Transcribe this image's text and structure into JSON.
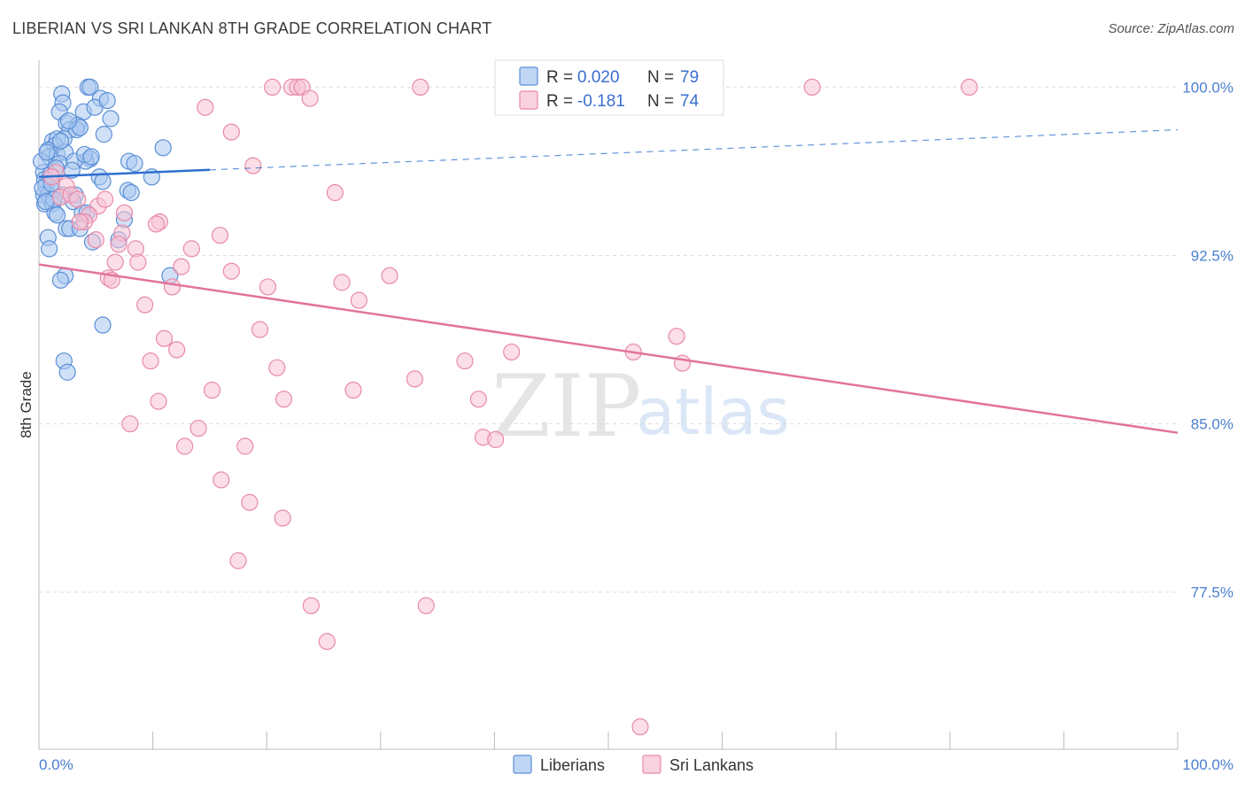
{
  "header": {
    "title": "LIBERIAN VS SRI LANKAN 8TH GRADE CORRELATION CHART",
    "source": "Source: ZipAtlas.com"
  },
  "watermark": {
    "zip": "ZIP",
    "atlas": "atlas"
  },
  "legend": {
    "rows": [
      {
        "r_label": "R =",
        "r_value": "0.020",
        "n_label": "N =",
        "n_value": "79",
        "color": "#7aaae8"
      },
      {
        "r_label": "R =",
        "r_value": "-0.181",
        "n_label": "N =",
        "n_value": "74",
        "color": "#f4a6c0"
      }
    ]
  },
  "colors": {
    "liberians_fill": "#a9c8f0",
    "liberians_stroke": "#5b8fd6",
    "liberians_line": "#2f6fcf",
    "srilankans_fill": "#f7c3d4",
    "srilankans_stroke": "#e889a9",
    "srilankans_line": "#e2739c",
    "grid": "#dddddd",
    "tick_text": "#4a7fd0"
  },
  "chart_data": {
    "type": "scatter",
    "title": "LIBERIAN VS SRI LANKAN 8TH GRADE CORRELATION CHART",
    "xlabel": "",
    "ylabel": "8th Grade",
    "xlim": [
      0,
      100
    ],
    "ylim": [
      70.5,
      101.2
    ],
    "x_tick_labels": [
      "0.0%",
      "100.0%"
    ],
    "y_ticks": [
      {
        "value": 100.0,
        "label": "100.0%"
      },
      {
        "value": 92.5,
        "label": "92.5%"
      },
      {
        "value": 85.0,
        "label": "85.0%"
      },
      {
        "value": 77.5,
        "label": "77.5%"
      }
    ],
    "series": [
      {
        "name": "Liberians",
        "r": 0.02,
        "n": 79,
        "trend": {
          "x0": 0,
          "y0": 96.0,
          "x1": 100,
          "y1": 98.1,
          "solid_until": 15
        },
        "points": [
          [
            2.0,
            99.7
          ],
          [
            4.3,
            100.0
          ],
          [
            4.5,
            100.0
          ],
          [
            5.4,
            99.5
          ],
          [
            2.1,
            99.3
          ],
          [
            1.8,
            98.9
          ],
          [
            3.9,
            98.9
          ],
          [
            4.9,
            99.1
          ],
          [
            6.3,
            98.6
          ],
          [
            2.4,
            98.4
          ],
          [
            3.4,
            98.3
          ],
          [
            2.7,
            98.1
          ],
          [
            3.3,
            98.1
          ],
          [
            3.6,
            98.2
          ],
          [
            5.7,
            97.9
          ],
          [
            1.2,
            97.6
          ],
          [
            1.6,
            97.7
          ],
          [
            2.2,
            97.7
          ],
          [
            1.4,
            97.4
          ],
          [
            0.8,
            97.2
          ],
          [
            0.9,
            96.9
          ],
          [
            1.6,
            97.0
          ],
          [
            2.3,
            97.1
          ],
          [
            10.9,
            97.3
          ],
          [
            4.5,
            96.8
          ],
          [
            4.1,
            96.7
          ],
          [
            7.9,
            96.7
          ],
          [
            8.4,
            96.6
          ],
          [
            1.8,
            96.6
          ],
          [
            3.1,
            96.7
          ],
          [
            0.4,
            96.2
          ],
          [
            0.5,
            95.9
          ],
          [
            5.3,
            96.0
          ],
          [
            9.9,
            96.0
          ],
          [
            0.6,
            95.6
          ],
          [
            1.2,
            95.4
          ],
          [
            5.6,
            95.8
          ],
          [
            7.8,
            95.4
          ],
          [
            2.1,
            95.2
          ],
          [
            0.4,
            95.2
          ],
          [
            0.8,
            95.2
          ],
          [
            1.0,
            95.0
          ],
          [
            8.1,
            95.3
          ],
          [
            0.5,
            94.8
          ],
          [
            1.2,
            94.8
          ],
          [
            1.4,
            94.4
          ],
          [
            1.6,
            94.3
          ],
          [
            3.8,
            94.4
          ],
          [
            4.2,
            94.4
          ],
          [
            7.5,
            94.1
          ],
          [
            2.4,
            93.7
          ],
          [
            2.7,
            93.7
          ],
          [
            3.6,
            93.7
          ],
          [
            0.8,
            93.3
          ],
          [
            4.7,
            93.1
          ],
          [
            7.0,
            93.2
          ],
          [
            0.9,
            92.8
          ],
          [
            2.3,
            91.6
          ],
          [
            11.5,
            91.6
          ],
          [
            1.9,
            91.4
          ],
          [
            5.6,
            89.4
          ],
          [
            2.2,
            87.8
          ],
          [
            2.5,
            87.3
          ],
          [
            1.0,
            96.1
          ],
          [
            0.3,
            95.5
          ],
          [
            1.3,
            95.0
          ],
          [
            2.9,
            96.3
          ],
          [
            3.2,
            95.2
          ],
          [
            1.5,
            96.4
          ],
          [
            0.6,
            94.9
          ],
          [
            4.0,
            97.0
          ],
          [
            6.0,
            99.4
          ],
          [
            1.1,
            95.7
          ],
          [
            2.6,
            98.5
          ],
          [
            0.2,
            96.7
          ],
          [
            0.7,
            97.1
          ],
          [
            3.0,
            94.9
          ],
          [
            1.9,
            97.6
          ],
          [
            4.6,
            96.9
          ]
        ]
      },
      {
        "name": "Sri Lankans",
        "r": -0.181,
        "n": 74,
        "trend": {
          "x0": 0,
          "y0": 92.1,
          "x1": 100,
          "y1": 84.6
        },
        "points": [
          [
            20.5,
            100.0
          ],
          [
            22.2,
            100.0
          ],
          [
            22.7,
            100.0
          ],
          [
            23.1,
            100.0
          ],
          [
            33.5,
            100.0
          ],
          [
            67.9,
            100.0
          ],
          [
            81.7,
            100.0
          ],
          [
            23.8,
            99.5
          ],
          [
            14.6,
            99.1
          ],
          [
            16.9,
            98.0
          ],
          [
            18.8,
            96.5
          ],
          [
            1.5,
            96.2
          ],
          [
            1.1,
            96.0
          ],
          [
            2.4,
            95.6
          ],
          [
            1.9,
            95.1
          ],
          [
            2.8,
            95.2
          ],
          [
            3.4,
            95.0
          ],
          [
            26.0,
            95.3
          ],
          [
            5.2,
            94.7
          ],
          [
            4.4,
            94.3
          ],
          [
            4.0,
            94.0
          ],
          [
            7.5,
            94.4
          ],
          [
            10.6,
            94.0
          ],
          [
            10.3,
            93.9
          ],
          [
            7.3,
            93.5
          ],
          [
            15.9,
            93.4
          ],
          [
            5.0,
            93.2
          ],
          [
            7.0,
            93.0
          ],
          [
            8.5,
            92.8
          ],
          [
            13.4,
            92.8
          ],
          [
            8.7,
            92.2
          ],
          [
            6.7,
            92.2
          ],
          [
            12.5,
            92.0
          ],
          [
            16.9,
            91.8
          ],
          [
            6.1,
            91.5
          ],
          [
            6.4,
            91.4
          ],
          [
            30.8,
            91.6
          ],
          [
            26.6,
            91.3
          ],
          [
            11.7,
            91.1
          ],
          [
            20.1,
            91.1
          ],
          [
            9.3,
            90.3
          ],
          [
            28.1,
            90.5
          ],
          [
            19.4,
            89.2
          ],
          [
            56.0,
            88.9
          ],
          [
            11.0,
            88.8
          ],
          [
            12.1,
            88.3
          ],
          [
            41.5,
            88.2
          ],
          [
            9.8,
            87.8
          ],
          [
            37.4,
            87.8
          ],
          [
            52.2,
            88.2
          ],
          [
            20.9,
            87.5
          ],
          [
            56.5,
            87.7
          ],
          [
            33.0,
            87.0
          ],
          [
            15.2,
            86.5
          ],
          [
            27.6,
            86.5
          ],
          [
            10.5,
            86.0
          ],
          [
            21.5,
            86.1
          ],
          [
            38.6,
            86.1
          ],
          [
            8.0,
            85.0
          ],
          [
            14.0,
            84.8
          ],
          [
            39.0,
            84.4
          ],
          [
            40.1,
            84.3
          ],
          [
            12.8,
            84.0
          ],
          [
            18.1,
            84.0
          ],
          [
            16.0,
            82.5
          ],
          [
            18.5,
            81.5
          ],
          [
            21.4,
            80.8
          ],
          [
            17.5,
            78.9
          ],
          [
            23.9,
            76.9
          ],
          [
            34.0,
            76.9
          ],
          [
            25.3,
            75.3
          ],
          [
            52.8,
            71.5
          ],
          [
            5.8,
            95.0
          ],
          [
            3.6,
            94.0
          ]
        ]
      }
    ]
  },
  "bottom_legend": {
    "items": [
      {
        "label": "Liberians"
      },
      {
        "label": "Sri Lankans"
      }
    ]
  }
}
